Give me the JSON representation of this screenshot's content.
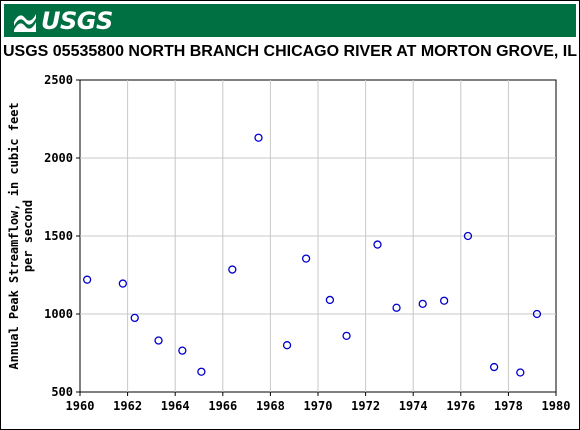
{
  "header": {
    "logo_text": "USGS",
    "brand_color": "#006f41"
  },
  "chart_data": {
    "type": "scatter",
    "title": "USGS 05535800 NORTH BRANCH CHICAGO RIVER AT MORTON GROVE, IL",
    "ylabel_line1": "Annual Peak Streamflow, in cubic feet",
    "ylabel_line2": "per second",
    "xlabel": "",
    "xlim": [
      1960,
      1980
    ],
    "ylim": [
      500,
      2500
    ],
    "x_ticks": [
      1960,
      1962,
      1964,
      1966,
      1968,
      1970,
      1972,
      1974,
      1976,
      1978,
      1980
    ],
    "y_ticks": [
      500,
      1000,
      1500,
      2000,
      2500
    ],
    "grid": true,
    "marker_color": "#0000cc",
    "points": [
      {
        "x": 1960.3,
        "y": 1220
      },
      {
        "x": 1961.8,
        "y": 1195
      },
      {
        "x": 1962.3,
        "y": 975
      },
      {
        "x": 1963.3,
        "y": 830
      },
      {
        "x": 1964.3,
        "y": 765
      },
      {
        "x": 1965.1,
        "y": 630
      },
      {
        "x": 1966.4,
        "y": 1285
      },
      {
        "x": 1967.5,
        "y": 2130
      },
      {
        "x": 1968.7,
        "y": 800
      },
      {
        "x": 1969.5,
        "y": 1355
      },
      {
        "x": 1970.5,
        "y": 1090
      },
      {
        "x": 1971.2,
        "y": 860
      },
      {
        "x": 1972.5,
        "y": 1445
      },
      {
        "x": 1973.3,
        "y": 1040
      },
      {
        "x": 1974.4,
        "y": 1065
      },
      {
        "x": 1975.3,
        "y": 1085
      },
      {
        "x": 1976.3,
        "y": 1500
      },
      {
        "x": 1977.4,
        "y": 660
      },
      {
        "x": 1978.5,
        "y": 625
      },
      {
        "x": 1979.2,
        "y": 1000
      }
    ]
  }
}
